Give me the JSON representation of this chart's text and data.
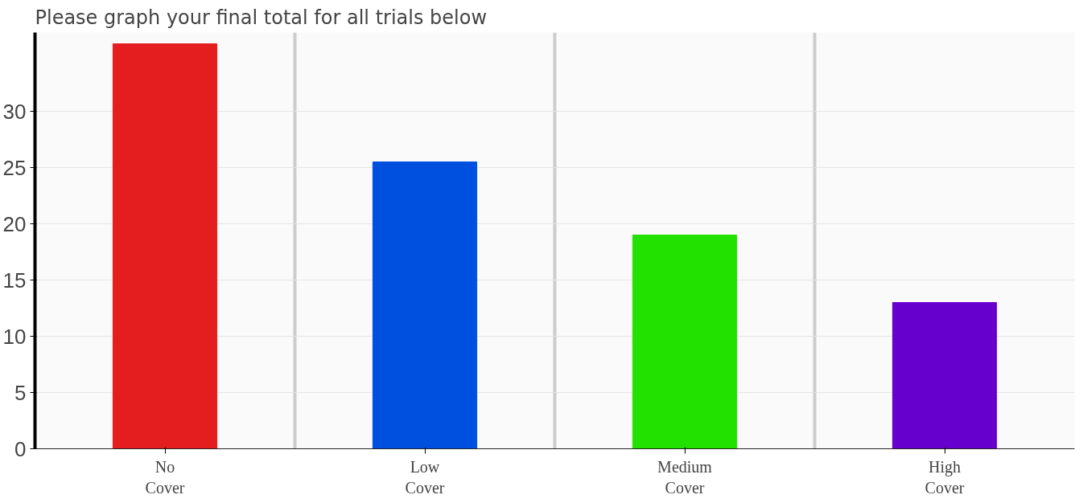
{
  "chart_data": {
    "type": "bar",
    "title": "Please graph your final total for all trials below",
    "categories": [
      "No\nCover",
      "Low\nCover",
      "Medium\nCover",
      "High\nCover"
    ],
    "values": [
      36,
      25.5,
      19,
      13
    ],
    "colors": [
      "#e41e1e",
      "#0050e0",
      "#22e000",
      "#6600cc"
    ],
    "ylim": [
      0,
      37
    ],
    "yticks": [
      0,
      5,
      10,
      15,
      20,
      25,
      30
    ],
    "grid": true
  }
}
